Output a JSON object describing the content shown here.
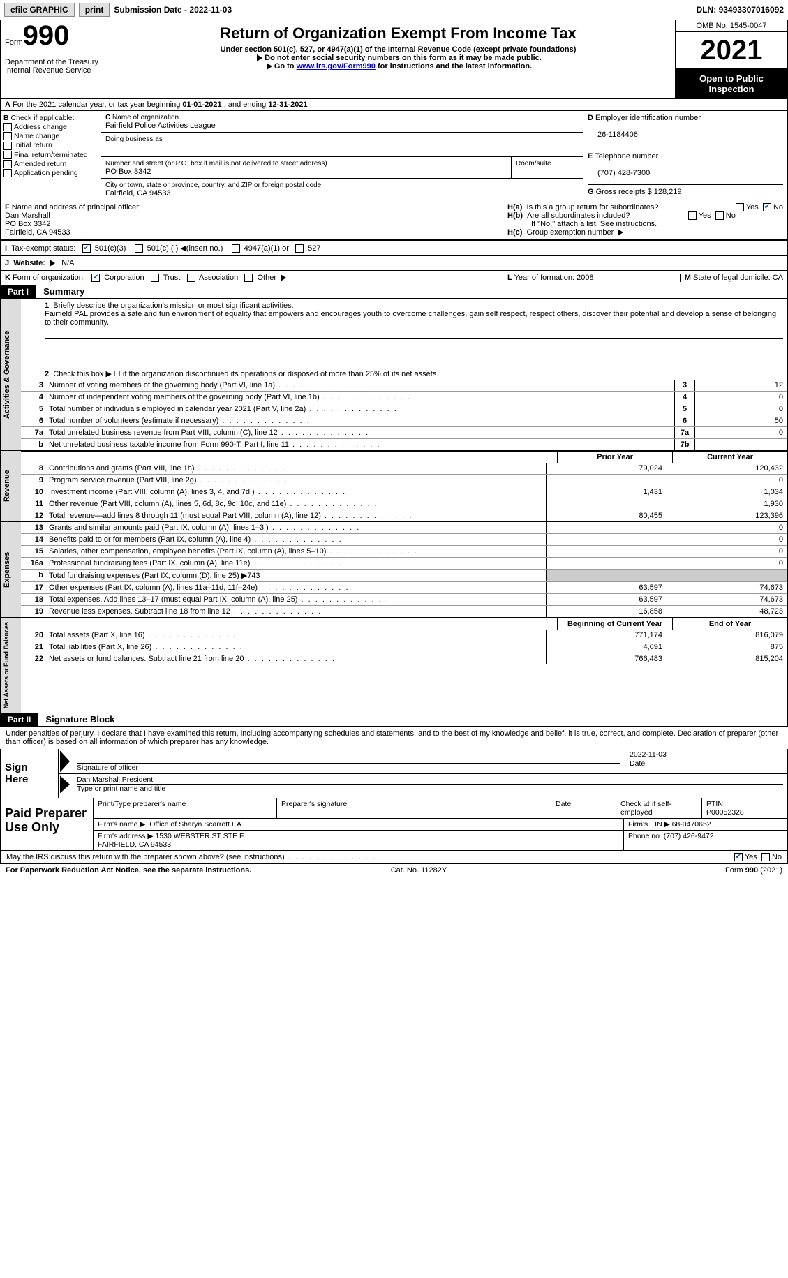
{
  "topbar": {
    "efile": "efile GRAPHIC",
    "print": "print",
    "submission_label": "Submission Date - ",
    "submission_date": "2022-11-03",
    "dln_label": "DLN: ",
    "dln": "93493307016092"
  },
  "header": {
    "form_word": "Form",
    "form_num": "990",
    "title": "Return of Organization Exempt From Income Tax",
    "subtitle": "Under section 501(c), 527, or 4947(a)(1) of the Internal Revenue Code (except private foundations)",
    "note1": "Do not enter social security numbers on this form as it may be made public.",
    "note2_a": "Go to ",
    "note2_link": "www.irs.gov/Form990",
    "note2_b": " for instructions and the latest information.",
    "dept": "Department of the Treasury\nInternal Revenue Service",
    "omb": "OMB No. 1545-0047",
    "year": "2021",
    "openpub": "Open to Public Inspection"
  },
  "rowA": {
    "text_a": "For the 2021 calendar year, or tax year beginning ",
    "begin": "01-01-2021",
    "text_b": " , and ending ",
    "end": "12-31-2021"
  },
  "boxB": {
    "title": "Check if applicable:",
    "items": [
      "Address change",
      "Name change",
      "Initial return",
      "Final return/terminated",
      "Amended return",
      "Application pending"
    ]
  },
  "boxC": {
    "name_lbl": "Name of organization",
    "name": "Fairfield Police Activities League",
    "dba_lbl": "Doing business as",
    "dba": "",
    "street_lbl": "Number and street (or P.O. box if mail is not delivered to street address)",
    "room_lbl": "Room/suite",
    "street": "PO Box 3342",
    "city_lbl": "City or town, state or province, country, and ZIP or foreign postal code",
    "city": "Fairfield, CA  94533"
  },
  "boxD": {
    "lbl": "Employer identification number",
    "val": "26-1184406"
  },
  "boxE": {
    "lbl": "Telephone number",
    "val": "(707) 428-7300"
  },
  "boxG": {
    "lbl": "Gross receipts $ ",
    "val": "128,219"
  },
  "boxF": {
    "lbl": "Name and address of principal officer:",
    "name": "Dan Marshall",
    "addr1": "PO Box 3342",
    "addr2": "Fairfield, CA  94533"
  },
  "boxH": {
    "a_lbl": "Is this a group return for subordinates?",
    "a_yes": "Yes",
    "a_no": "No",
    "b_lbl": "Are all subordinates included?",
    "b_note": "If \"No,\" attach a list. See instructions.",
    "c_lbl": "Group exemption number"
  },
  "boxI": {
    "lbl": "Tax-exempt status:",
    "o1": "501(c)(3)",
    "o2": "501(c) (   )",
    "o2b": "(insert no.)",
    "o3": "4947(a)(1) or",
    "o4": "527"
  },
  "boxJ": {
    "lbl": "Website:",
    "val": "N/A"
  },
  "boxK": {
    "lbl": "Form of organization:",
    "o1": "Corporation",
    "o2": "Trust",
    "o3": "Association",
    "o4": "Other"
  },
  "boxL": {
    "lbl": "Year of formation: ",
    "val": "2008"
  },
  "boxM": {
    "lbl": "State of legal domicile: ",
    "val": "CA"
  },
  "part1": {
    "bar": "Part I",
    "title": "Summary",
    "line1_lbl": "Briefly describe the organization's mission or most significant activities:",
    "line1_val": "Fairfield PAL provides a safe and fun environment of equality that empowers and encourages youth to overcome challenges, gain self respect, respect others, discover their potential and develop a sense of belonging to their community.",
    "line2": "Check this box ▶ ☐ if the organization discontinued its operations or disposed of more than 25% of its net assets.",
    "col_prior": "Prior Year",
    "col_current": "Current Year",
    "col_begin": "Beginning of Current Year",
    "col_end": "End of Year",
    "sect_ag": "Activities & Governance",
    "sect_rev": "Revenue",
    "sect_exp": "Expenses",
    "sect_na": "Net Assets or Fund Balances",
    "lines_ag": [
      {
        "n": "3",
        "desc": "Number of voting members of the governing body (Part VI, line 1a)",
        "box": "3",
        "v": "12"
      },
      {
        "n": "4",
        "desc": "Number of independent voting members of the governing body (Part VI, line 1b)",
        "box": "4",
        "v": "0"
      },
      {
        "n": "5",
        "desc": "Total number of individuals employed in calendar year 2021 (Part V, line 2a)",
        "box": "5",
        "v": "0"
      },
      {
        "n": "6",
        "desc": "Total number of volunteers (estimate if necessary)",
        "box": "6",
        "v": "50"
      },
      {
        "n": "7a",
        "desc": "Total unrelated business revenue from Part VIII, column (C), line 12",
        "box": "7a",
        "v": "0"
      },
      {
        "n": "b",
        "desc": "Net unrelated business taxable income from Form 990-T, Part I, line 11",
        "box": "7b",
        "v": ""
      }
    ],
    "lines_rev": [
      {
        "n": "8",
        "desc": "Contributions and grants (Part VIII, line 1h)",
        "p": "79,024",
        "c": "120,432"
      },
      {
        "n": "9",
        "desc": "Program service revenue (Part VIII, line 2g)",
        "p": "",
        "c": "0"
      },
      {
        "n": "10",
        "desc": "Investment income (Part VIII, column (A), lines 3, 4, and 7d )",
        "p": "1,431",
        "c": "1,034"
      },
      {
        "n": "11",
        "desc": "Other revenue (Part VIII, column (A), lines 5, 6d, 8c, 9c, 10c, and 11e)",
        "p": "",
        "c": "1,930"
      },
      {
        "n": "12",
        "desc": "Total revenue—add lines 8 through 11 (must equal Part VIII, column (A), line 12)",
        "p": "80,455",
        "c": "123,396"
      }
    ],
    "lines_exp": [
      {
        "n": "13",
        "desc": "Grants and similar amounts paid (Part IX, column (A), lines 1–3 )",
        "p": "",
        "c": "0"
      },
      {
        "n": "14",
        "desc": "Benefits paid to or for members (Part IX, column (A), line 4)",
        "p": "",
        "c": "0"
      },
      {
        "n": "15",
        "desc": "Salaries, other compensation, employee benefits (Part IX, column (A), lines 5–10)",
        "p": "",
        "c": "0"
      },
      {
        "n": "16a",
        "desc": "Professional fundraising fees (Part IX, column (A), line 11e)",
        "p": "",
        "c": "0"
      },
      {
        "n": "b",
        "desc": "Total fundraising expenses (Part IX, column (D), line 25) ▶743",
        "grey": true
      },
      {
        "n": "17",
        "desc": "Other expenses (Part IX, column (A), lines 11a–11d, 11f–24e)",
        "p": "63,597",
        "c": "74,673"
      },
      {
        "n": "18",
        "desc": "Total expenses. Add lines 13–17 (must equal Part IX, column (A), line 25)",
        "p": "63,597",
        "c": "74,673"
      },
      {
        "n": "19",
        "desc": "Revenue less expenses. Subtract line 18 from line 12",
        "p": "16,858",
        "c": "48,723"
      }
    ],
    "lines_na": [
      {
        "n": "20",
        "desc": "Total assets (Part X, line 16)",
        "p": "771,174",
        "c": "816,079"
      },
      {
        "n": "21",
        "desc": "Total liabilities (Part X, line 26)",
        "p": "4,691",
        "c": "875"
      },
      {
        "n": "22",
        "desc": "Net assets or fund balances. Subtract line 21 from line 20",
        "p": "766,483",
        "c": "815,204"
      }
    ]
  },
  "part2": {
    "bar": "Part II",
    "title": "Signature Block",
    "decl": "Under penalties of perjury, I declare that I have examined this return, including accompanying schedules and statements, and to the best of my knowledge and belief, it is true, correct, and complete. Declaration of preparer (other than officer) is based on all information of which preparer has any knowledge.",
    "sign_here": "Sign Here",
    "sig_officer_lbl": "Signature of officer",
    "sig_date": "2022-11-03",
    "date_lbl": "Date",
    "typed_name": "Dan Marshall  President",
    "typed_lbl": "Type or print name and title",
    "paid": "Paid Preparer Use Only",
    "prep_name_lbl": "Print/Type preparer's name",
    "prep_sig_lbl": "Preparer's signature",
    "prep_date_lbl": "Date",
    "prep_check_lbl": "Check ☑ if self-employed",
    "ptin_lbl": "PTIN",
    "ptin": "P00052328",
    "firm_name_lbl": "Firm's name    ▶",
    "firm_name": "Office of Sharyn Scarrott EA",
    "firm_ein_lbl": "Firm's EIN ▶",
    "firm_ein": "68-0470652",
    "firm_addr_lbl": "Firm's address ▶",
    "firm_addr": "1530 WEBSTER ST STE F\nFAIRFIELD, CA  94533",
    "phone_lbl": "Phone no. ",
    "phone": "(707) 426-9472",
    "discuss": "May the IRS discuss this return with the preparer shown above? (see instructions)",
    "yes": "Yes",
    "no": "No"
  },
  "footer": {
    "left": "For Paperwork Reduction Act Notice, see the separate instructions.",
    "mid": "Cat. No. 11282Y",
    "right": "Form 990 (2021)"
  },
  "colors": {
    "link": "#0000cc",
    "black": "#000000",
    "grey": "#cccccc",
    "vtab": "#dddddd"
  }
}
